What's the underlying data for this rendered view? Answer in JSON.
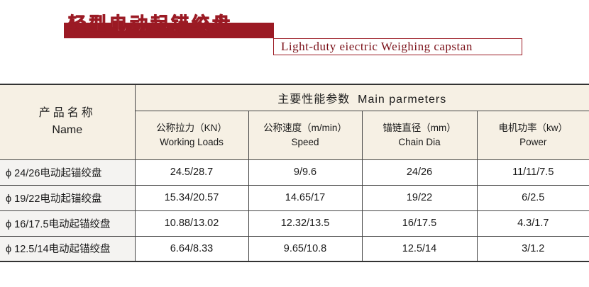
{
  "header": {
    "title_cn": "轻型电动起锚绞盘",
    "title_en": "Light-duty eiectric Weighing capstan",
    "accent_color": "#9b1a24"
  },
  "table": {
    "name_header": {
      "cn": "产品名称",
      "en": "Name"
    },
    "group_header": "主要性能参数  Main parmeters",
    "columns": [
      {
        "cn": "公称拉力（KN）",
        "en": "Working Loads"
      },
      {
        "cn": "公称速度（m/min）",
        "en": "Speed"
      },
      {
        "cn": "锚链直径（mm）",
        "en": "Chain Dia"
      },
      {
        "cn": "电机功率（kw）",
        "en": "Power"
      }
    ],
    "rows": [
      {
        "name": "ϕ 24/26电动起锚绞盘",
        "values": [
          "24.5/28.7",
          "9/9.6",
          "24/26",
          "11/11/7.5"
        ]
      },
      {
        "name": "ϕ 19/22电动起锚绞盘",
        "values": [
          "15.34/20.57",
          "14.65/17",
          "19/22",
          "6/2.5"
        ]
      },
      {
        "name": "ϕ 16/17.5电动起锚绞盘",
        "values": [
          "10.88/13.02",
          "12.32/13.5",
          "16/17.5",
          "4.3/1.7"
        ]
      },
      {
        "name": "ϕ 12.5/14电动起锚绞盘",
        "values": [
          "6.64/8.33",
          "9.65/10.8",
          "12.5/14",
          "3/1.2"
        ]
      }
    ]
  }
}
